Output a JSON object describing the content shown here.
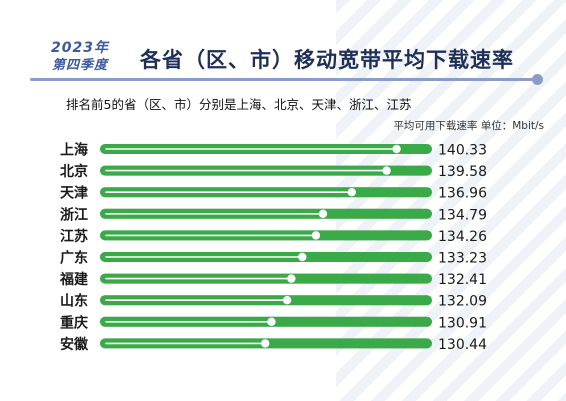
{
  "header": {
    "year": "2023年",
    "quarter": "第四季度",
    "title": "各省（区、市）移动宽带平均下载速率",
    "subtitle": "排名前5的省（区、市）分别是上海、北京、天津、浙江、江苏",
    "unit_note": "平均可用下载速率 单位：Mbit/s"
  },
  "colors": {
    "bar_green": "#3aaa49",
    "track_gray": "#bcc0c8",
    "title_navy": "#1f2f57",
    "accent_blue": "#3b5b9e"
  },
  "chart_data": {
    "type": "bar",
    "orientation": "horizontal",
    "title": "各省（区、市）移动宽带平均下载速率",
    "unit": "Mbit/s",
    "categories": [
      "上海",
      "北京",
      "天津",
      "浙江",
      "江苏",
      "广东",
      "福建",
      "山东",
      "重庆",
      "安徽"
    ],
    "values": [
      140.33,
      139.58,
      136.96,
      134.79,
      134.26,
      133.23,
      132.41,
      132.09,
      130.91,
      130.44
    ],
    "xlim": [
      118,
      143
    ]
  }
}
